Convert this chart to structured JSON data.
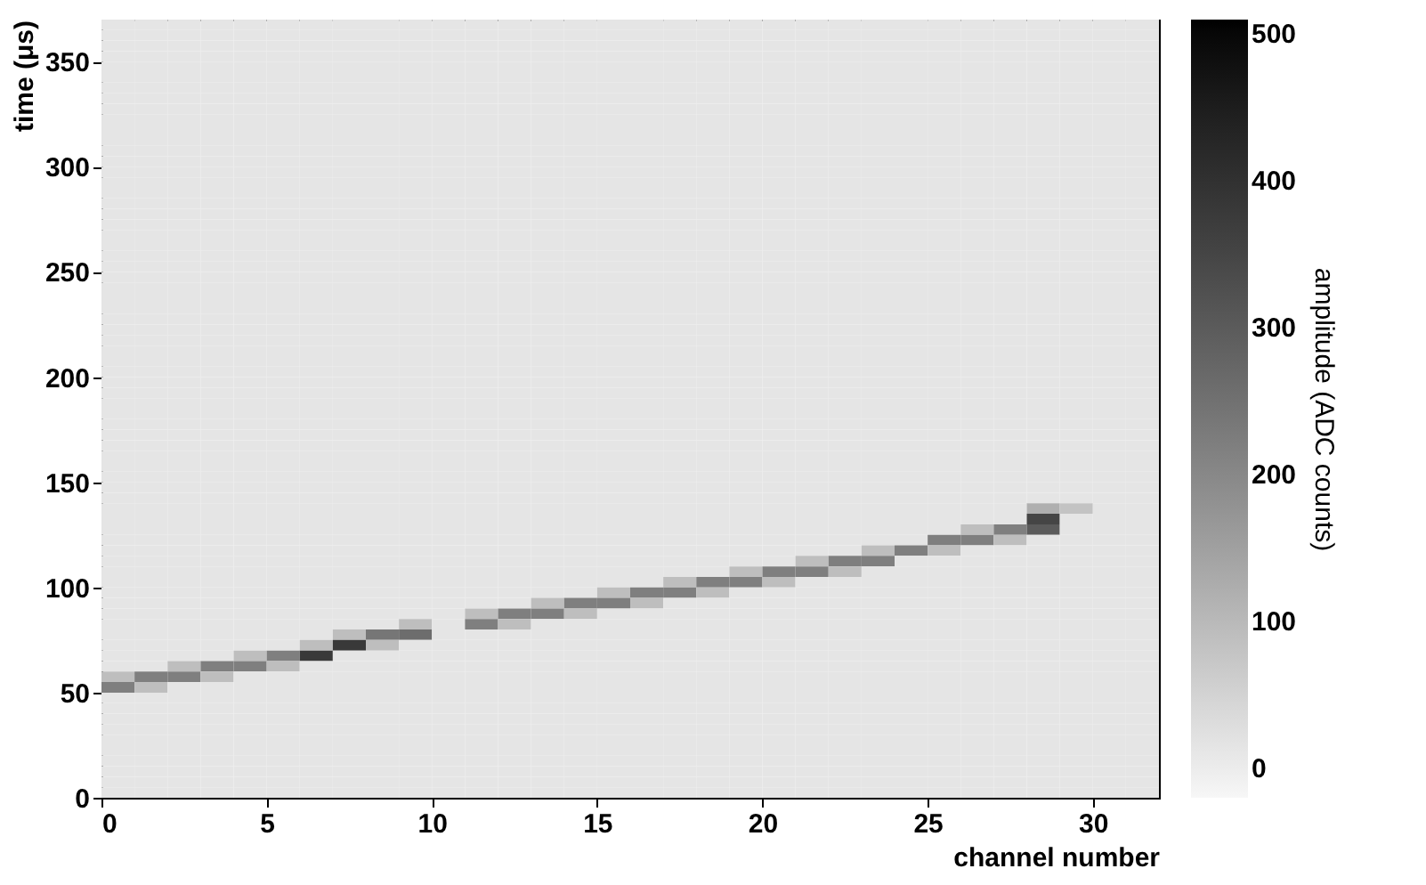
{
  "chart_data": {
    "type": "heatmap",
    "xlabel": "channel number",
    "ylabel": "time (μs)",
    "clabel": "amplitude (ADC counts)",
    "xlim": [
      0,
      32
    ],
    "ylim": [
      0,
      370
    ],
    "xticks": [
      0,
      5,
      10,
      15,
      20,
      25,
      30
    ],
    "yticks": [
      0,
      50,
      100,
      150,
      200,
      250,
      300,
      350
    ],
    "clim": [
      -20,
      510
    ],
    "cticks": [
      0,
      100,
      200,
      300,
      400,
      500
    ],
    "grid": false,
    "cells": [
      [
        15,
        15,
        15,
        15,
        15,
        15,
        15,
        15,
        15,
        15,
        15,
        15,
        15,
        15,
        15,
        15,
        15,
        15,
        15,
        15,
        15,
        15,
        15,
        15,
        15,
        15,
        15,
        15,
        15,
        15,
        15,
        15
      ],
      [
        15,
        15,
        15,
        15,
        15,
        15,
        15,
        15,
        15,
        15,
        15,
        15,
        15,
        15,
        15,
        15,
        15,
        15,
        15,
        15,
        15,
        15,
        15,
        15,
        15,
        15,
        15,
        15,
        15,
        15,
        15,
        15
      ],
      [
        15,
        15,
        15,
        15,
        15,
        15,
        15,
        15,
        15,
        15,
        15,
        15,
        15,
        15,
        15,
        15,
        15,
        15,
        15,
        15,
        15,
        15,
        15,
        15,
        15,
        15,
        15,
        15,
        15,
        15,
        15,
        15
      ],
      [
        15,
        15,
        15,
        15,
        15,
        15,
        15,
        15,
        15,
        15,
        15,
        15,
        15,
        15,
        15,
        15,
        15,
        15,
        15,
        15,
        15,
        15,
        15,
        15,
        15,
        15,
        15,
        15,
        15,
        15,
        15,
        15
      ],
      [
        15,
        15,
        15,
        15,
        15,
        15,
        15,
        15,
        15,
        15,
        15,
        15,
        15,
        15,
        15,
        15,
        15,
        15,
        15,
        15,
        15,
        15,
        15,
        15,
        15,
        15,
        15,
        15,
        15,
        15,
        15,
        15
      ],
      [
        15,
        15,
        15,
        15,
        15,
        15,
        15,
        15,
        15,
        15,
        15,
        15,
        15,
        15,
        15,
        15,
        15,
        15,
        15,
        15,
        15,
        15,
        15,
        15,
        15,
        15,
        15,
        15,
        15,
        15,
        15,
        15
      ],
      [
        15,
        15,
        15,
        15,
        15,
        15,
        15,
        15,
        15,
        15,
        15,
        15,
        15,
        15,
        15,
        15,
        15,
        15,
        15,
        15,
        15,
        15,
        15,
        15,
        15,
        15,
        15,
        15,
        15,
        15,
        15,
        15
      ],
      [
        15,
        15,
        15,
        15,
        15,
        15,
        15,
        15,
        15,
        15,
        15,
        15,
        15,
        15,
        15,
        15,
        15,
        15,
        15,
        15,
        15,
        15,
        15,
        15,
        15,
        15,
        15,
        15,
        15,
        15,
        15,
        15
      ],
      [
        15,
        15,
        15,
        15,
        15,
        15,
        15,
        15,
        15,
        15,
        15,
        15,
        15,
        15,
        15,
        15,
        15,
        15,
        15,
        15,
        15,
        15,
        15,
        15,
        15,
        15,
        15,
        15,
        15,
        15,
        15,
        15
      ],
      [
        15,
        15,
        15,
        15,
        15,
        15,
        15,
        15,
        15,
        15,
        15,
        15,
        15,
        15,
        15,
        15,
        15,
        15,
        15,
        15,
        15,
        15,
        15,
        15,
        15,
        15,
        15,
        15,
        15,
        15,
        15,
        15
      ],
      [
        15,
        15,
        15,
        15,
        15,
        15,
        15,
        15,
        15,
        15,
        15,
        15,
        15,
        15,
        15,
        15,
        15,
        15,
        15,
        15,
        15,
        15,
        15,
        15,
        15,
        15,
        15,
        15,
        15,
        15,
        15,
        15
      ],
      [
        15,
        15,
        15,
        15,
        15,
        15,
        15,
        15,
        15,
        15,
        15,
        15,
        15,
        15,
        15,
        15,
        15,
        15,
        15,
        15,
        15,
        15,
        15,
        15,
        15,
        15,
        15,
        15,
        15,
        15,
        15,
        15
      ],
      [
        15,
        15,
        15,
        15,
        15,
        15,
        15,
        15,
        15,
        15,
        15,
        15,
        15,
        15,
        15,
        15,
        15,
        15,
        15,
        15,
        15,
        15,
        15,
        15,
        15,
        15,
        15,
        15,
        15,
        15,
        15,
        15
      ],
      [
        15,
        15,
        15,
        15,
        15,
        15,
        15,
        15,
        15,
        15,
        15,
        15,
        15,
        15,
        15,
        15,
        15,
        15,
        15,
        15,
        15,
        15,
        15,
        15,
        15,
        15,
        15,
        15,
        15,
        15,
        15,
        15
      ],
      [
        15,
        15,
        15,
        15,
        15,
        15,
        15,
        15,
        15,
        15,
        15,
        15,
        15,
        15,
        15,
        15,
        15,
        15,
        15,
        15,
        15,
        15,
        15,
        15,
        15,
        15,
        15,
        15,
        15,
        15,
        15,
        15
      ],
      [
        15,
        15,
        15,
        15,
        15,
        15,
        15,
        15,
        15,
        15,
        15,
        15,
        15,
        15,
        15,
        15,
        15,
        15,
        15,
        15,
        15,
        15,
        15,
        15,
        15,
        15,
        15,
        15,
        15,
        15,
        15,
        15
      ],
      [
        15,
        15,
        15,
        15,
        15,
        15,
        15,
        15,
        15,
        15,
        15,
        15,
        15,
        15,
        15,
        15,
        15,
        15,
        15,
        15,
        15,
        15,
        15,
        15,
        15,
        15,
        15,
        15,
        15,
        15,
        15,
        15
      ],
      [
        15,
        15,
        15,
        15,
        15,
        15,
        15,
        15,
        15,
        15,
        15,
        15,
        15,
        15,
        15,
        15,
        15,
        15,
        15,
        15,
        15,
        15,
        15,
        15,
        15,
        15,
        15,
        15,
        15,
        15,
        15,
        15
      ],
      [
        15,
        15,
        15,
        15,
        15,
        15,
        15,
        15,
        15,
        15,
        15,
        15,
        15,
        15,
        15,
        15,
        15,
        15,
        15,
        15,
        15,
        15,
        15,
        15,
        15,
        15,
        15,
        15,
        15,
        15,
        15,
        15
      ],
      [
        15,
        15,
        15,
        15,
        15,
        15,
        15,
        15,
        15,
        15,
        15,
        15,
        15,
        15,
        15,
        15,
        15,
        15,
        15,
        15,
        15,
        15,
        15,
        15,
        15,
        15,
        15,
        15,
        15,
        15,
        15,
        15
      ],
      [
        15,
        15,
        15,
        15,
        15,
        15,
        15,
        15,
        15,
        15,
        15,
        15,
        15,
        15,
        15,
        15,
        15,
        15,
        15,
        15,
        15,
        15,
        15,
        15,
        15,
        15,
        15,
        15,
        15,
        15,
        15,
        15
      ],
      [
        15,
        15,
        15,
        15,
        15,
        15,
        15,
        15,
        15,
        15,
        15,
        15,
        15,
        15,
        15,
        15,
        15,
        15,
        15,
        15,
        15,
        15,
        15,
        15,
        15,
        15,
        15,
        15,
        15,
        15,
        15,
        15
      ],
      [
        15,
        15,
        15,
        15,
        15,
        15,
        15,
        15,
        15,
        15,
        15,
        15,
        15,
        15,
        15,
        15,
        15,
        15,
        15,
        15,
        15,
        15,
        15,
        15,
        15,
        15,
        15,
        15,
        15,
        15,
        15,
        15
      ],
      [
        15,
        15,
        15,
        15,
        15,
        15,
        15,
        15,
        15,
        15,
        15,
        15,
        15,
        15,
        15,
        15,
        15,
        15,
        15,
        15,
        15,
        15,
        15,
        15,
        15,
        15,
        15,
        15,
        15,
        15,
        15,
        15
      ],
      [
        15,
        15,
        15,
        15,
        15,
        15,
        15,
        15,
        15,
        15,
        15,
        15,
        15,
        15,
        15,
        15,
        15,
        15,
        15,
        15,
        15,
        15,
        15,
        15,
        15,
        15,
        15,
        15,
        15,
        15,
        15,
        15
      ],
      [
        15,
        15,
        15,
        15,
        15,
        15,
        15,
        15,
        15,
        15,
        15,
        15,
        15,
        15,
        15,
        15,
        15,
        15,
        15,
        15,
        15,
        15,
        15,
        15,
        15,
        15,
        15,
        15,
        15,
        15,
        15,
        15
      ],
      [
        15,
        15,
        15,
        15,
        15,
        15,
        15,
        15,
        15,
        15,
        15,
        15,
        15,
        15,
        15,
        15,
        15,
        15,
        15,
        15,
        15,
        15,
        15,
        15,
        15,
        15,
        15,
        15,
        15,
        15,
        15,
        15
      ],
      [
        15,
        15,
        15,
        15,
        15,
        15,
        15,
        15,
        15,
        15,
        15,
        15,
        15,
        15,
        15,
        15,
        15,
        15,
        15,
        15,
        15,
        15,
        15,
        15,
        15,
        15,
        15,
        15,
        15,
        15,
        15,
        15
      ],
      [
        15,
        15,
        15,
        15,
        15,
        15,
        15,
        15,
        15,
        15,
        15,
        15,
        15,
        15,
        15,
        15,
        15,
        15,
        15,
        15,
        15,
        15,
        15,
        15,
        15,
        15,
        15,
        15,
        15,
        15,
        15,
        15
      ],
      [
        15,
        15,
        15,
        15,
        15,
        15,
        15,
        15,
        15,
        15,
        15,
        15,
        15,
        15,
        15,
        15,
        15,
        15,
        15,
        15,
        15,
        15,
        15,
        15,
        15,
        15,
        15,
        15,
        15,
        15,
        15,
        15
      ],
      [
        15,
        15,
        15,
        15,
        15,
        15,
        15,
        15,
        15,
        15,
        15,
        15,
        15,
        15,
        15,
        15,
        15,
        15,
        15,
        15,
        15,
        15,
        15,
        15,
        15,
        15,
        15,
        15,
        15,
        15,
        15,
        15
      ],
      [
        15,
        15,
        15,
        15,
        15,
        15,
        15,
        15,
        15,
        15,
        15,
        15,
        15,
        15,
        15,
        15,
        15,
        15,
        15,
        15,
        15,
        15,
        15,
        15,
        15,
        15,
        15,
        15,
        15,
        15,
        15,
        15
      ],
      [
        15,
        15,
        15,
        15,
        15,
        15,
        15,
        15,
        15,
        15,
        15,
        15,
        15,
        15,
        15,
        15,
        15,
        15,
        15,
        15,
        15,
        15,
        15,
        15,
        15,
        15,
        15,
        15,
        15,
        15,
        15,
        15
      ],
      [
        15,
        15,
        15,
        15,
        15,
        15,
        15,
        15,
        15,
        15,
        15,
        15,
        15,
        15,
        15,
        15,
        15,
        15,
        15,
        15,
        15,
        15,
        15,
        15,
        15,
        15,
        15,
        15,
        15,
        15,
        15,
        15
      ],
      [
        15,
        15,
        15,
        15,
        15,
        15,
        15,
        15,
        15,
        15,
        15,
        15,
        15,
        15,
        15,
        15,
        15,
        15,
        15,
        15,
        15,
        15,
        15,
        15,
        15,
        15,
        15,
        15,
        15,
        15,
        15,
        15
      ],
      [
        15,
        15,
        15,
        15,
        15,
        15,
        15,
        15,
        15,
        15,
        15,
        15,
        15,
        15,
        15,
        15,
        15,
        15,
        15,
        15,
        15,
        15,
        15,
        15,
        15,
        15,
        15,
        15,
        15,
        15,
        15,
        15
      ],
      [
        15,
        15,
        15,
        15,
        15,
        15,
        15,
        15,
        15,
        15,
        15,
        15,
        15,
        15,
        15,
        15,
        15,
        15,
        15,
        15,
        15,
        15,
        15,
        15,
        15,
        15,
        15,
        15,
        15,
        15,
        15,
        15
      ],
      [
        15,
        15,
        15,
        15,
        15,
        15,
        15,
        15,
        15,
        15,
        15,
        15,
        15,
        15,
        15,
        15,
        15,
        15,
        15,
        15,
        15,
        15,
        15,
        15,
        15,
        15,
        15,
        15,
        15,
        15,
        15,
        15
      ],
      [
        15,
        15,
        15,
        15,
        15,
        15,
        15,
        15,
        15,
        15,
        15,
        15,
        15,
        15,
        15,
        15,
        15,
        15,
        15,
        15,
        15,
        15,
        15,
        15,
        15,
        15,
        15,
        15,
        15,
        15,
        15,
        15
      ],
      [
        15,
        15,
        15,
        15,
        15,
        15,
        15,
        15,
        15,
        15,
        15,
        15,
        15,
        15,
        15,
        15,
        15,
        15,
        15,
        15,
        15,
        15,
        15,
        15,
        15,
        15,
        15,
        15,
        15,
        15,
        15,
        15
      ],
      [
        15,
        15,
        15,
        15,
        15,
        15,
        15,
        15,
        15,
        15,
        15,
        15,
        15,
        15,
        15,
        15,
        15,
        15,
        15,
        15,
        15,
        15,
        15,
        15,
        15,
        15,
        15,
        15,
        15,
        15,
        15,
        15
      ],
      [
        15,
        15,
        15,
        15,
        15,
        15,
        15,
        15,
        15,
        15,
        15,
        15,
        15,
        15,
        15,
        15,
        15,
        15,
        15,
        15,
        15,
        15,
        15,
        15,
        15,
        15,
        15,
        15,
        15,
        15,
        15,
        15
      ],
      [
        15,
        15,
        15,
        15,
        15,
        15,
        15,
        15,
        15,
        15,
        15,
        15,
        15,
        15,
        15,
        15,
        15,
        15,
        15,
        15,
        15,
        15,
        15,
        15,
        15,
        15,
        15,
        15,
        15,
        15,
        15,
        15
      ],
      [
        15,
        15,
        15,
        15,
        15,
        15,
        15,
        15,
        15,
        15,
        15,
        15,
        15,
        15,
        15,
        15,
        15,
        15,
        15,
        15,
        15,
        15,
        15,
        15,
        15,
        15,
        15,
        15,
        15,
        15,
        15,
        15
      ],
      [
        15,
        15,
        15,
        15,
        15,
        15,
        15,
        15,
        15,
        15,
        15,
        15,
        15,
        15,
        15,
        15,
        15,
        15,
        15,
        15,
        15,
        15,
        15,
        15,
        15,
        15,
        15,
        15,
        15,
        15,
        15,
        15
      ],
      [
        15,
        15,
        15,
        15,
        15,
        15,
        15,
        15,
        15,
        15,
        15,
        15,
        15,
        15,
        15,
        15,
        15,
        15,
        15,
        15,
        15,
        15,
        15,
        15,
        15,
        15,
        15,
        15,
        15,
        15,
        15,
        15
      ],
      [
        15,
        15,
        15,
        15,
        15,
        15,
        15,
        15,
        15,
        15,
        15,
        15,
        15,
        15,
        15,
        15,
        15,
        15,
        15,
        15,
        15,
        15,
        15,
        15,
        15,
        15,
        15,
        15,
        120,
        80,
        15,
        15
      ],
      [
        15,
        15,
        15,
        15,
        15,
        15,
        15,
        15,
        15,
        15,
        15,
        15,
        15,
        15,
        15,
        15,
        15,
        15,
        15,
        15,
        15,
        15,
        15,
        15,
        15,
        15,
        15,
        15,
        350,
        15,
        15,
        15
      ],
      [
        15,
        15,
        15,
        15,
        15,
        15,
        15,
        15,
        15,
        15,
        15,
        15,
        15,
        15,
        15,
        15,
        15,
        15,
        15,
        15,
        15,
        15,
        15,
        15,
        15,
        15,
        90,
        220,
        300,
        15,
        15,
        15
      ],
      [
        15,
        15,
        15,
        15,
        15,
        15,
        15,
        15,
        15,
        15,
        15,
        15,
        15,
        15,
        15,
        15,
        15,
        15,
        15,
        15,
        15,
        15,
        15,
        15,
        15,
        220,
        220,
        90,
        15,
        15,
        15,
        15
      ],
      [
        15,
        15,
        15,
        15,
        15,
        15,
        15,
        15,
        15,
        15,
        15,
        15,
        15,
        15,
        15,
        15,
        15,
        15,
        15,
        15,
        15,
        15,
        15,
        90,
        220,
        90,
        15,
        15,
        15,
        15,
        15,
        15
      ],
      [
        15,
        15,
        15,
        15,
        15,
        15,
        15,
        15,
        15,
        15,
        15,
        15,
        15,
        15,
        15,
        15,
        15,
        15,
        15,
        15,
        15,
        90,
        220,
        220,
        15,
        15,
        15,
        15,
        15,
        15,
        15,
        15
      ],
      [
        15,
        15,
        15,
        15,
        15,
        15,
        15,
        15,
        15,
        15,
        15,
        15,
        15,
        15,
        15,
        15,
        15,
        15,
        15,
        90,
        220,
        220,
        90,
        15,
        15,
        15,
        15,
        15,
        15,
        15,
        15,
        15
      ],
      [
        15,
        15,
        15,
        15,
        15,
        15,
        15,
        15,
        15,
        15,
        15,
        15,
        15,
        15,
        15,
        15,
        15,
        90,
        220,
        220,
        90,
        15,
        15,
        15,
        15,
        15,
        15,
        15,
        15,
        15,
        15,
        15
      ],
      [
        15,
        15,
        15,
        15,
        15,
        15,
        15,
        15,
        15,
        15,
        15,
        15,
        15,
        15,
        15,
        90,
        220,
        220,
        90,
        15,
        15,
        15,
        15,
        15,
        15,
        15,
        15,
        15,
        15,
        15,
        15,
        15
      ],
      [
        15,
        15,
        15,
        15,
        15,
        15,
        15,
        15,
        15,
        15,
        15,
        15,
        15,
        90,
        220,
        220,
        90,
        15,
        15,
        15,
        15,
        15,
        15,
        15,
        15,
        15,
        15,
        15,
        15,
        15,
        15,
        15
      ],
      [
        15,
        15,
        15,
        15,
        15,
        15,
        15,
        15,
        15,
        15,
        15,
        90,
        220,
        220,
        90,
        15,
        15,
        15,
        15,
        15,
        15,
        15,
        15,
        15,
        15,
        15,
        15,
        15,
        15,
        15,
        15,
        15
      ],
      [
        15,
        15,
        15,
        15,
        15,
        15,
        15,
        15,
        15,
        90,
        15,
        220,
        90,
        15,
        15,
        15,
        15,
        15,
        15,
        15,
        15,
        15,
        15,
        15,
        15,
        15,
        15,
        15,
        15,
        15,
        15,
        15
      ],
      [
        15,
        15,
        15,
        15,
        15,
        15,
        15,
        90,
        240,
        260,
        15,
        15,
        15,
        15,
        15,
        15,
        15,
        15,
        15,
        15,
        15,
        15,
        15,
        15,
        15,
        15,
        15,
        15,
        15,
        15,
        15,
        15
      ],
      [
        15,
        15,
        15,
        15,
        15,
        15,
        90,
        380,
        90,
        15,
        15,
        15,
        15,
        15,
        15,
        15,
        15,
        15,
        15,
        15,
        15,
        15,
        15,
        15,
        15,
        15,
        15,
        15,
        15,
        15,
        15,
        15
      ],
      [
        15,
        15,
        15,
        15,
        90,
        220,
        380,
        15,
        15,
        15,
        15,
        15,
        15,
        15,
        15,
        15,
        15,
        15,
        15,
        15,
        15,
        15,
        15,
        15,
        15,
        15,
        15,
        15,
        15,
        15,
        15,
        15
      ],
      [
        15,
        15,
        90,
        220,
        220,
        90,
        15,
        15,
        15,
        15,
        15,
        15,
        15,
        15,
        15,
        15,
        15,
        15,
        15,
        15,
        15,
        15,
        15,
        15,
        15,
        15,
        15,
        15,
        15,
        15,
        15,
        15
      ],
      [
        90,
        220,
        220,
        90,
        15,
        15,
        15,
        15,
        15,
        15,
        15,
        15,
        15,
        15,
        15,
        15,
        15,
        15,
        15,
        15,
        15,
        15,
        15,
        15,
        15,
        15,
        15,
        15,
        15,
        15,
        15,
        15
      ],
      [
        220,
        90,
        15,
        15,
        15,
        15,
        15,
        15,
        15,
        15,
        15,
        15,
        15,
        15,
        15,
        15,
        15,
        15,
        15,
        15,
        15,
        15,
        15,
        15,
        15,
        15,
        15,
        15,
        15,
        15,
        15,
        15
      ],
      [
        15,
        15,
        15,
        15,
        15,
        15,
        15,
        15,
        15,
        15,
        15,
        15,
        15,
        15,
        15,
        15,
        15,
        15,
        15,
        15,
        15,
        15,
        15,
        15,
        15,
        15,
        15,
        15,
        15,
        15,
        15,
        15
      ],
      [
        15,
        15,
        15,
        15,
        15,
        15,
        15,
        15,
        15,
        15,
        15,
        15,
        15,
        15,
        15,
        15,
        15,
        15,
        15,
        15,
        15,
        15,
        15,
        15,
        15,
        15,
        15,
        15,
        15,
        15,
        15,
        15
      ],
      [
        15,
        15,
        15,
        15,
        15,
        15,
        15,
        15,
        15,
        15,
        15,
        15,
        15,
        15,
        15,
        15,
        15,
        15,
        15,
        15,
        15,
        15,
        15,
        15,
        15,
        15,
        15,
        15,
        15,
        15,
        15,
        15
      ],
      [
        15,
        15,
        15,
        15,
        15,
        15,
        15,
        15,
        15,
        15,
        15,
        15,
        15,
        15,
        15,
        15,
        15,
        15,
        15,
        15,
        15,
        15,
        15,
        15,
        15,
        15,
        15,
        15,
        15,
        15,
        15,
        15
      ],
      [
        15,
        15,
        15,
        15,
        15,
        15,
        15,
        15,
        15,
        15,
        15,
        15,
        15,
        15,
        15,
        15,
        15,
        15,
        15,
        15,
        15,
        15,
        15,
        15,
        15,
        15,
        15,
        15,
        15,
        15,
        15,
        15
      ],
      [
        15,
        15,
        15,
        15,
        15,
        15,
        15,
        15,
        15,
        15,
        15,
        15,
        15,
        15,
        15,
        15,
        15,
        15,
        15,
        15,
        15,
        15,
        15,
        15,
        15,
        15,
        15,
        15,
        15,
        15,
        15,
        15
      ],
      [
        15,
        15,
        15,
        15,
        15,
        15,
        15,
        15,
        15,
        15,
        15,
        15,
        15,
        15,
        15,
        15,
        15,
        15,
        15,
        15,
        15,
        15,
        15,
        15,
        15,
        15,
        15,
        15,
        15,
        15,
        15,
        15
      ],
      [
        15,
        15,
        15,
        15,
        15,
        15,
        15,
        15,
        15,
        15,
        15,
        15,
        15,
        15,
        15,
        15,
        15,
        15,
        15,
        15,
        15,
        15,
        15,
        15,
        15,
        15,
        15,
        15,
        15,
        15,
        15,
        15
      ],
      [
        15,
        15,
        15,
        15,
        15,
        15,
        15,
        15,
        15,
        15,
        15,
        15,
        15,
        15,
        15,
        15,
        15,
        15,
        15,
        15,
        15,
        15,
        15,
        15,
        15,
        15,
        15,
        15,
        15,
        15,
        15,
        15
      ],
      [
        15,
        15,
        15,
        15,
        15,
        15,
        15,
        15,
        15,
        15,
        15,
        15,
        15,
        15,
        15,
        15,
        15,
        15,
        15,
        15,
        15,
        15,
        15,
        15,
        15,
        15,
        15,
        15,
        15,
        15,
        15,
        15
      ]
    ]
  }
}
